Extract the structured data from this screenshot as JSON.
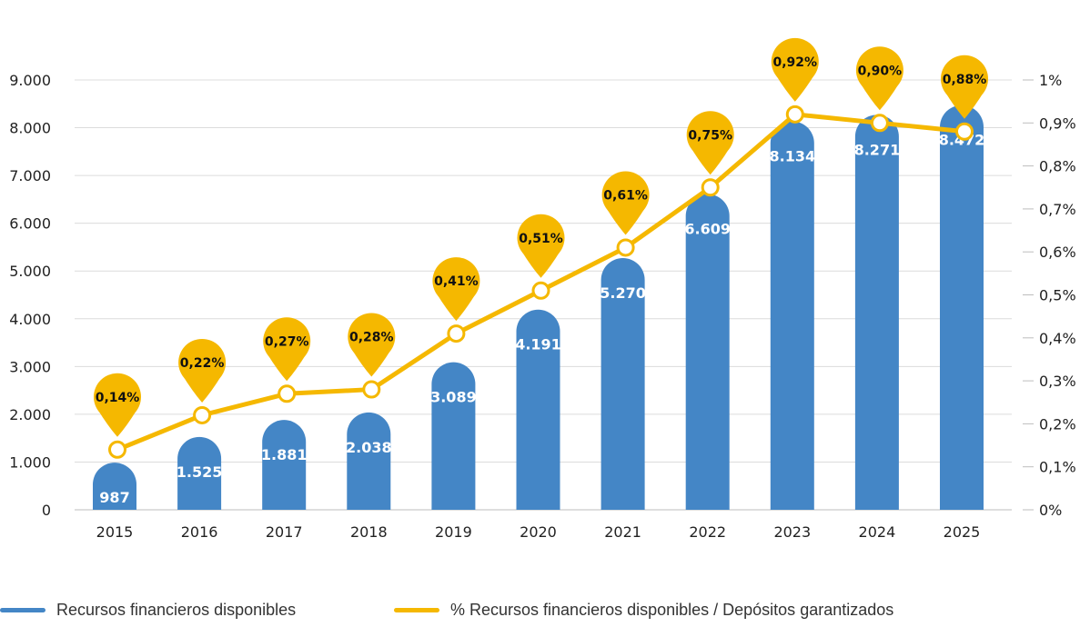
{
  "chart_data": {
    "type": "bar",
    "categories": [
      "2015",
      "2016",
      "2017",
      "2018",
      "2019",
      "2020",
      "2021",
      "2022",
      "2023",
      "2024",
      "2025"
    ],
    "series": [
      {
        "name": "Recursos financieros disponibles",
        "type": "bar",
        "axis": "left",
        "color": "#4486c6",
        "values": [
          987,
          1525,
          1881,
          2038,
          3089,
          4191,
          5270,
          6609,
          8134,
          8271,
          8472
        ],
        "labels": [
          "987",
          "1.525",
          "1.881",
          "2.038",
          "3.089",
          "4.191",
          "5.270",
          "6.609",
          "8.134",
          "8.271",
          "8.472"
        ]
      },
      {
        "name": "% Recursos financieros disponibles / Depósitos garantizados",
        "type": "line",
        "axis": "right",
        "color": "#f5b800",
        "values": [
          0.14,
          0.22,
          0.27,
          0.28,
          0.41,
          0.51,
          0.61,
          0.75,
          0.92,
          0.9,
          0.88
        ],
        "labels": [
          "0,14%",
          "0,22%",
          "0,27%",
          "0,28%",
          "0,41%",
          "0,51%",
          "0,61%",
          "0,75%",
          "0,92%",
          "0,90%",
          "0,88%"
        ]
      }
    ],
    "y_left": {
      "ylim": [
        0,
        9000
      ],
      "ticks": [
        0,
        1000,
        2000,
        3000,
        4000,
        5000,
        6000,
        7000,
        8000,
        9000
      ],
      "tick_labels": [
        "0",
        "1.000",
        "2.000",
        "3.000",
        "4.000",
        "5.000",
        "6.000",
        "7.000",
        "8.000",
        "9.000"
      ]
    },
    "y_right": {
      "ylim": [
        0,
        1
      ],
      "ticks": [
        0,
        0.1,
        0.2,
        0.3,
        0.4,
        0.5,
        0.6,
        0.7,
        0.8,
        0.9,
        1.0
      ],
      "tick_labels": [
        "0%",
        "0,1%",
        "0,2%",
        "0,3%",
        "0,4%",
        "0,5%",
        "0,6%",
        "0,7%",
        "0,8%",
        "0,9%",
        "1%"
      ]
    },
    "grid": true,
    "legend_position": "bottom"
  }
}
